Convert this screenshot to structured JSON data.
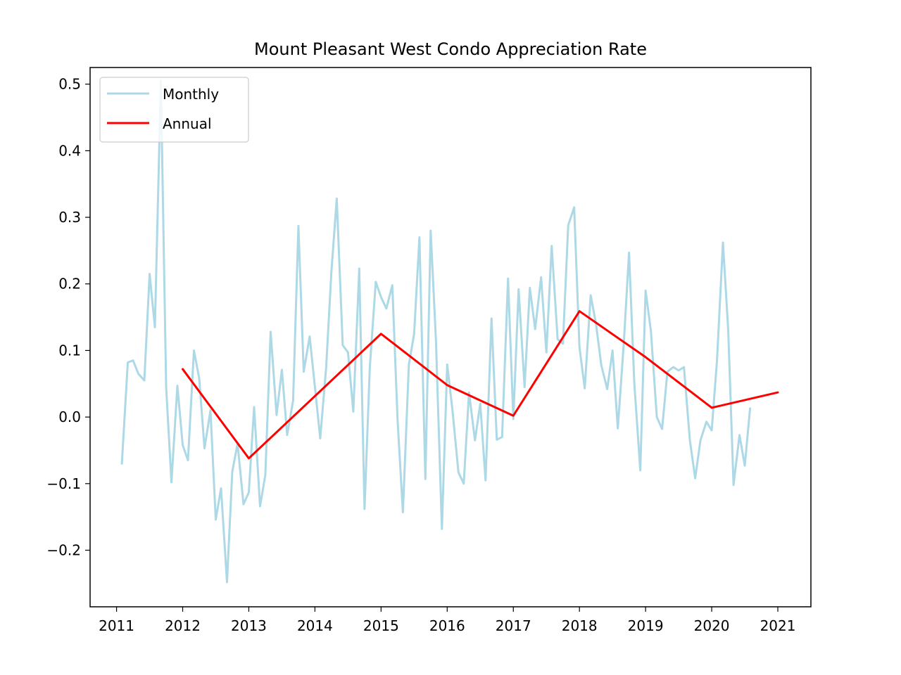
{
  "chart_data": {
    "type": "line",
    "title": "Mount Pleasant West Condo Appreciation Rate",
    "xlabel": "",
    "ylabel": "",
    "xlim": [
      2010.6,
      2021.5
    ],
    "ylim": [
      -0.285,
      0.525
    ],
    "x_ticks": [
      2011,
      2012,
      2013,
      2014,
      2015,
      2016,
      2017,
      2018,
      2019,
      2020,
      2021
    ],
    "y_ticks": [
      -0.2,
      -0.1,
      0.0,
      0.1,
      0.2,
      0.3,
      0.4,
      0.5
    ],
    "y_tick_labels": [
      "−0.2",
      "−0.1",
      "0.0",
      "0.1",
      "0.2",
      "0.3",
      "0.4",
      "0.5"
    ],
    "grid": false,
    "legend_position": "upper left",
    "series": [
      {
        "name": "Monthly",
        "color": "#add8e6",
        "x": [
          2011.08,
          2011.17,
          2011.25,
          2011.33,
          2011.42,
          2011.5,
          2011.58,
          2011.67,
          2011.75,
          2011.83,
          2011.92,
          2012.0,
          2012.08,
          2012.17,
          2012.25,
          2012.33,
          2012.42,
          2012.5,
          2012.58,
          2012.67,
          2012.75,
          2012.83,
          2012.92,
          2013.0,
          2013.08,
          2013.17,
          2013.25,
          2013.33,
          2013.42,
          2013.5,
          2013.58,
          2013.67,
          2013.75,
          2013.83,
          2013.92,
          2014.0,
          2014.08,
          2014.17,
          2014.25,
          2014.33,
          2014.42,
          2014.5,
          2014.58,
          2014.67,
          2014.75,
          2014.83,
          2014.92,
          2015.0,
          2015.08,
          2015.17,
          2015.25,
          2015.33,
          2015.42,
          2015.5,
          2015.58,
          2015.67,
          2015.75,
          2015.83,
          2015.92,
          2016.0,
          2016.08,
          2016.17,
          2016.25,
          2016.33,
          2016.42,
          2016.5,
          2016.58,
          2016.67,
          2016.75,
          2016.83,
          2016.92,
          2017.0,
          2017.08,
          2017.17,
          2017.25,
          2017.33,
          2017.42,
          2017.5,
          2017.58,
          2017.67,
          2017.75,
          2017.83,
          2017.92,
          2018.0,
          2018.08,
          2018.17,
          2018.25,
          2018.33,
          2018.42,
          2018.5,
          2018.58,
          2018.67,
          2018.75,
          2018.83,
          2018.92,
          2019.0,
          2019.08,
          2019.17,
          2019.25,
          2019.33,
          2019.42,
          2019.5,
          2019.58,
          2019.67,
          2019.75,
          2019.83,
          2019.92,
          2020.0,
          2020.08,
          2020.17,
          2020.25,
          2020.33,
          2020.42,
          2020.5,
          2020.58
        ],
        "y": [
          -0.07,
          0.082,
          0.085,
          0.065,
          0.055,
          0.215,
          0.135,
          0.505,
          0.045,
          -0.098,
          0.047,
          -0.042,
          -0.065,
          0.1,
          0.058,
          -0.047,
          0.01,
          -0.154,
          -0.107,
          -0.248,
          -0.082,
          -0.04,
          -0.131,
          -0.113,
          0.015,
          -0.134,
          -0.087,
          0.128,
          0.003,
          0.071,
          -0.027,
          0.025,
          0.287,
          0.068,
          0.121,
          0.045,
          -0.032,
          0.075,
          0.22,
          0.328,
          0.108,
          0.097,
          0.008,
          0.223,
          -0.138,
          0.075,
          0.203,
          0.18,
          0.163,
          0.198,
          -0.005,
          -0.143,
          0.078,
          0.125,
          0.27,
          -0.093,
          0.28,
          0.115,
          -0.168,
          0.079,
          0.01,
          -0.083,
          -0.1,
          0.037,
          -0.035,
          0.02,
          -0.095,
          0.148,
          -0.034,
          -0.03,
          0.208,
          -0.003,
          0.192,
          0.045,
          0.194,
          0.132,
          0.21,
          0.097,
          0.257,
          0.117,
          0.11,
          0.288,
          0.315,
          0.105,
          0.043,
          0.183,
          0.14,
          0.078,
          0.042,
          0.1,
          -0.017,
          0.11,
          0.247,
          0.05,
          -0.08,
          0.19,
          0.13,
          0.0,
          -0.018,
          0.068,
          0.075,
          0.07,
          0.075,
          -0.035,
          -0.092,
          -0.035,
          -0.007,
          -0.02,
          0.085,
          0.262,
          0.13,
          -0.102,
          -0.027,
          -0.073,
          0.013
        ]
      },
      {
        "name": "Annual",
        "color": "#ff0000",
        "x": [
          2012,
          2013,
          2015,
          2016,
          2017,
          2018,
          2019,
          2020,
          2021
        ],
        "y": [
          0.072,
          -0.062,
          0.125,
          0.048,
          0.002,
          0.159,
          0.09,
          0.014,
          0.037
        ]
      }
    ]
  }
}
